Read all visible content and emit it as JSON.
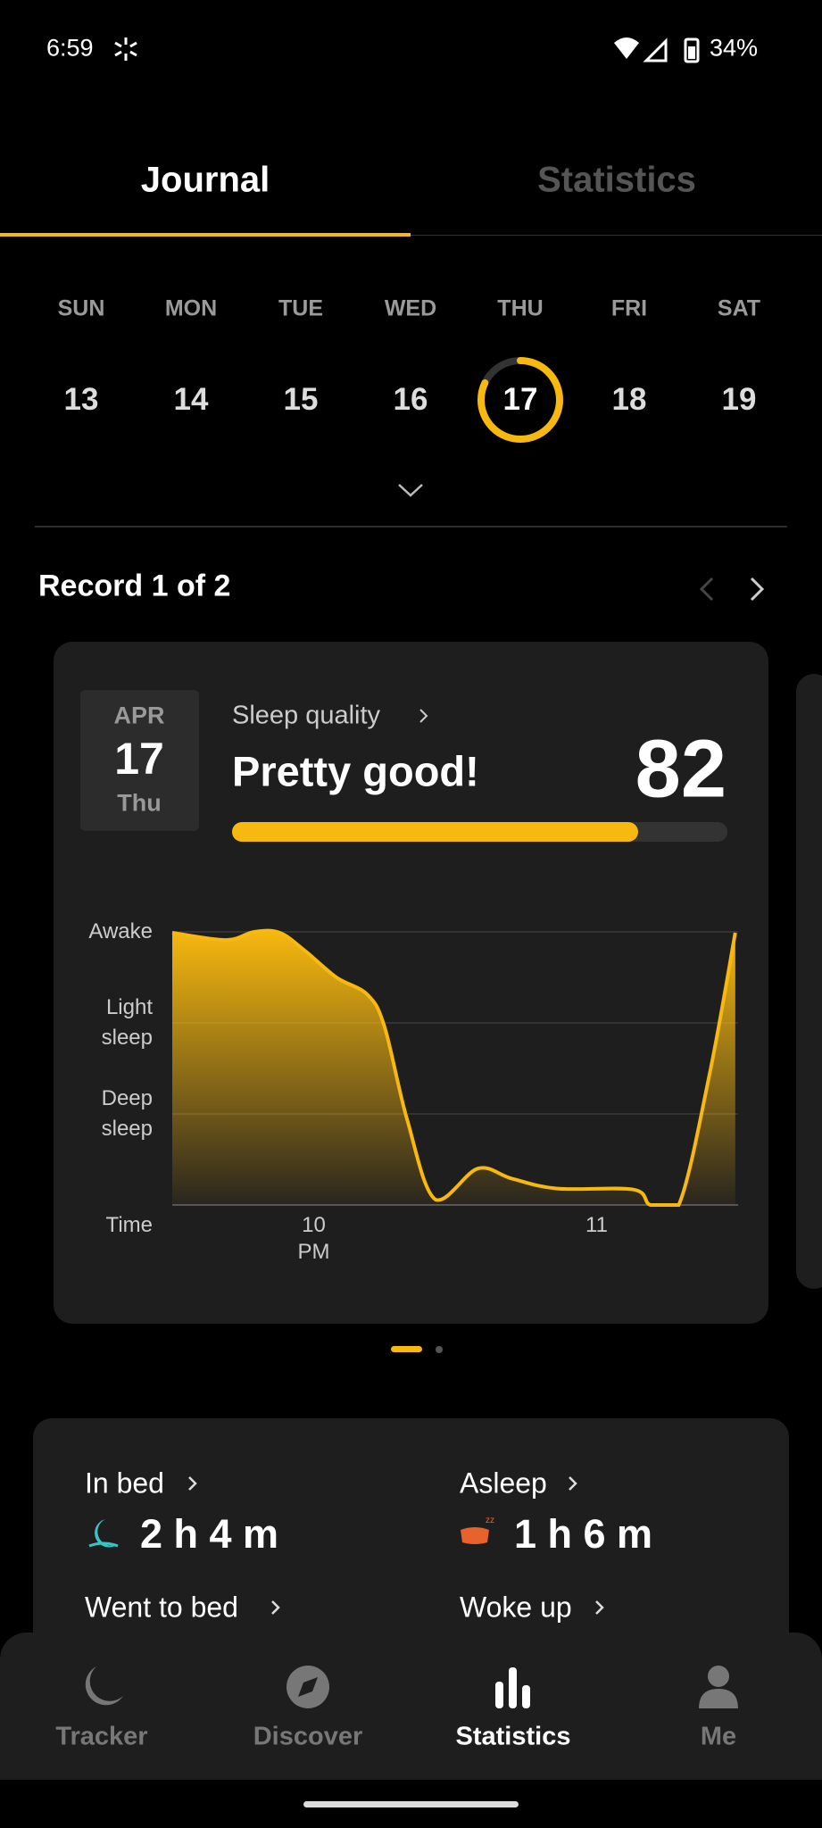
{
  "status_bar": {
    "time": "6:59",
    "battery": "34%"
  },
  "tabs": [
    "Journal",
    "Statistics"
  ],
  "week": {
    "days": [
      "SUN",
      "MON",
      "TUE",
      "WED",
      "THU",
      "FRI",
      "SAT"
    ],
    "dates": [
      "13",
      "14",
      "15",
      "16",
      "17",
      "18",
      "19"
    ]
  },
  "record": {
    "title": "Record 1 of 2",
    "month": "APR",
    "day": "17",
    "weekday": "Thu",
    "quality_label": "Sleep quality",
    "quality_text": "Pretty good!",
    "score": 82
  },
  "chart_data": {
    "type": "line",
    "color": "#f7b80f",
    "x": [
      21.5,
      21.69,
      21.79,
      21.88,
      21.97,
      22.08,
      22.19,
      22.25,
      22.33,
      22.43,
      22.58,
      22.7,
      22.86,
      23.13,
      23.19,
      23.29,
      23.4,
      23.49
    ],
    "values": [
      2.99,
      2.91,
      3,
      2.99,
      2.79,
      2.5,
      2.31,
      1.96,
      0.94,
      0.06,
      0.4,
      0.29,
      0.18,
      0.17,
      0,
      0,
      1.45,
      2.99
    ],
    "xlim": [
      21.5,
      23.5
    ],
    "ylim": [
      0,
      3
    ],
    "xticks": [
      {
        "value": 22,
        "label": "10 PM"
      },
      {
        "value": 23,
        "label": "11"
      }
    ],
    "yticks": [
      {
        "value": 3,
        "label": "Awake"
      },
      {
        "value": 2,
        "label": "Light sleep"
      },
      {
        "value": 1,
        "label": "Deep sleep"
      }
    ],
    "x_label": "Time",
    "grid": true
  },
  "stats": {
    "in_bed_label": "In bed",
    "in_bed": "2 h 4 m",
    "asleep_label": "Asleep",
    "asleep": "1 h 6 m",
    "went_to_bed": "Went to bed",
    "woke_up": "Woke up"
  },
  "nav": [
    "Tracker",
    "Discover",
    "Statistics",
    "Me"
  ]
}
